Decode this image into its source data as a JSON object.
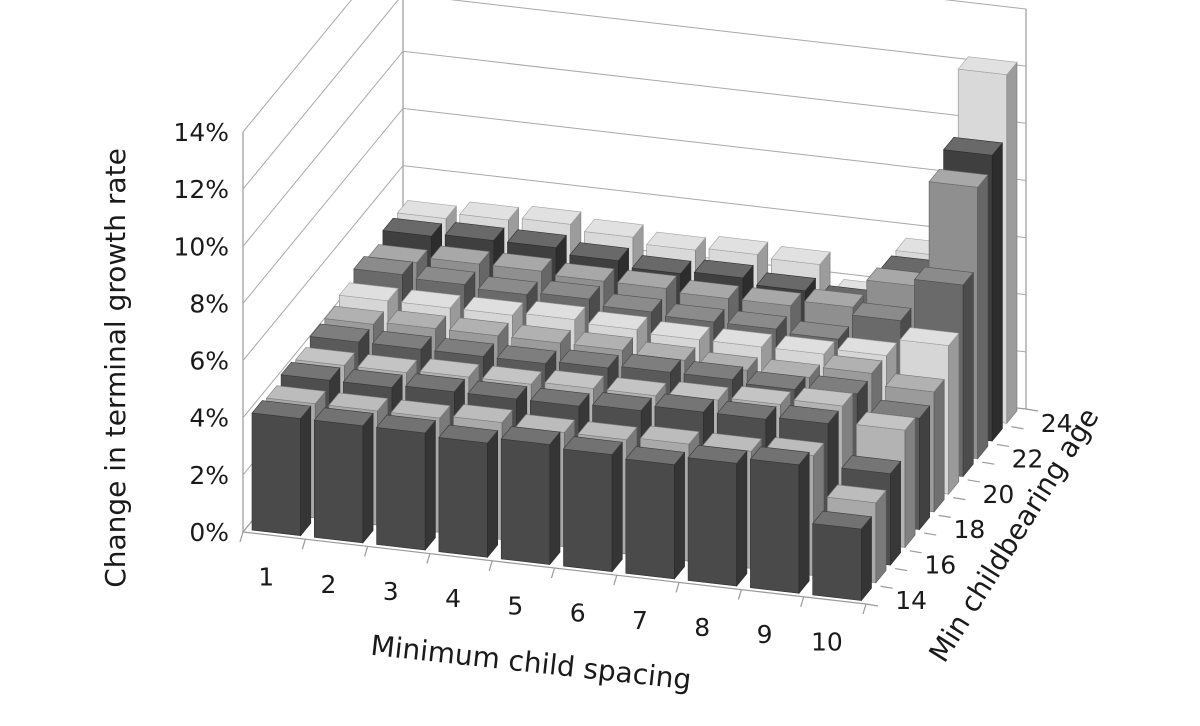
{
  "chart_data": {
    "type": "bar3d",
    "title": "",
    "xlabel": "Minimum child spacing",
    "ylabel": "Change in terminal growth rate",
    "zlabel": "Min childbearing age",
    "x_categories": [
      "1",
      "2",
      "3",
      "4",
      "5",
      "6",
      "7",
      "8",
      "9",
      "10"
    ],
    "z_categories": [
      "14",
      "15",
      "16",
      "17",
      "18",
      "19",
      "20",
      "21",
      "22",
      "23",
      "24"
    ],
    "z_tick_labels": [
      "14",
      "16",
      "18",
      "20",
      "22",
      "24"
    ],
    "y_tick_labels": [
      "0%",
      "2%",
      "4%",
      "6%",
      "8%",
      "10%",
      "12%",
      "14%"
    ],
    "ylim": [
      0,
      14
    ],
    "y_unit": "%",
    "series_colors": [
      "#4a4a4a",
      "#a9a9a9",
      "#4e4e4e",
      "#b3b3b3",
      "#5a5a5a",
      "#9b9b9b",
      "#d6d6d6",
      "#6a6a6a",
      "#8f8f8f",
      "#3f3f3f",
      "#d9d9d9"
    ],
    "series": [
      {
        "name": "14",
        "values": [
          4.1,
          4.1,
          4.1,
          4.0,
          4.2,
          4.1,
          4.0,
          4.3,
          4.5,
          2.5
        ]
      },
      {
        "name": "15",
        "values": [
          4.0,
          4.0,
          4.0,
          4.1,
          4.0,
          4.0,
          4.1,
          4.1,
          4.2,
          2.8
        ]
      },
      {
        "name": "16",
        "values": [
          4.2,
          4.2,
          4.3,
          4.3,
          4.3,
          4.4,
          4.6,
          4.6,
          4.7,
          3.2
        ]
      },
      {
        "name": "17",
        "values": [
          4.1,
          4.1,
          4.2,
          4.2,
          4.3,
          4.3,
          4.4,
          4.5,
          4.7,
          4.1
        ]
      },
      {
        "name": "18",
        "values": [
          4.3,
          4.3,
          4.3,
          4.3,
          4.4,
          4.5,
          4.5,
          4.4,
          4.5,
          3.9
        ]
      },
      {
        "name": "19",
        "values": [
          4.3,
          4.4,
          4.4,
          4.4,
          4.4,
          4.3,
          4.2,
          4.2,
          4.6,
          4.2
        ]
      },
      {
        "name": "20",
        "values": [
          4.5,
          4.5,
          4.5,
          4.6,
          4.5,
          4.4,
          4.4,
          4.4,
          4.6,
          5.2
        ]
      },
      {
        "name": "21",
        "values": [
          4.8,
          4.7,
          4.6,
          4.7,
          4.5,
          4.4,
          4.4,
          4.3,
          5.2,
          6.7
        ]
      },
      {
        "name": "22",
        "values": [
          4.6,
          4.8,
          4.8,
          4.7,
          4.7,
          4.6,
          4.6,
          4.8,
          5.8,
          9.5
        ]
      },
      {
        "name": "23",
        "values": [
          4.9,
          5.0,
          5.0,
          4.8,
          4.6,
          4.7,
          4.5,
          4.3,
          5.6,
          10.0
        ]
      },
      {
        "name": "24",
        "values": [
          4.9,
          5.1,
          5.2,
          5.0,
          4.8,
          4.9,
          4.8,
          3.9,
          5.6,
          12.2
        ]
      }
    ]
  }
}
